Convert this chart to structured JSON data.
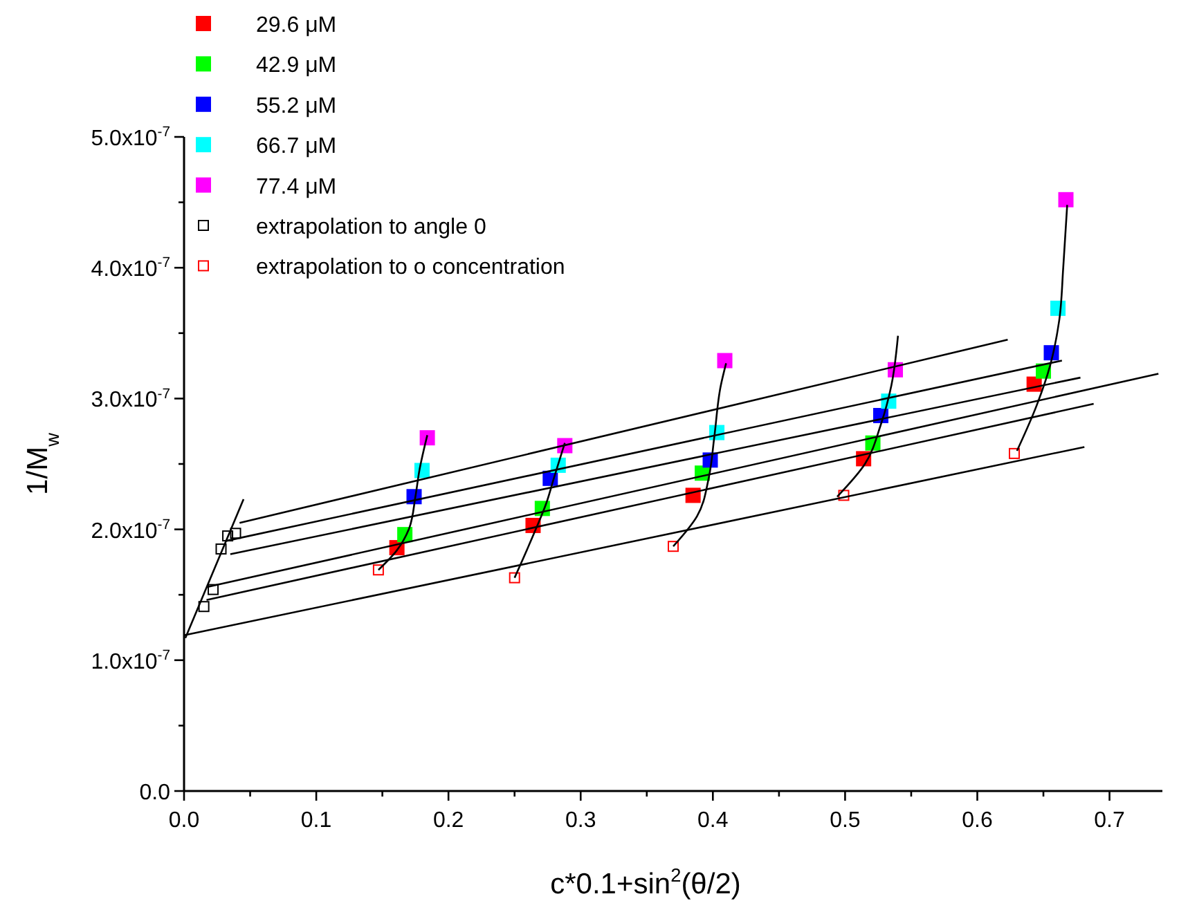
{
  "chart_data": {
    "type": "scatter",
    "xlabel": "c*0.1+sin$^{2}$(θ/2)",
    "ylabel": "1/M$_{w}$",
    "xlim": [
      0,
      0.74
    ],
    "ylim": [
      0,
      5e-07
    ],
    "xticks": [
      {
        "value": 0,
        "label": "0.0"
      },
      {
        "value": 0.05,
        "label": null
      },
      {
        "value": 0.1,
        "label": "0.1"
      },
      {
        "value": 0.15,
        "label": null
      },
      {
        "value": 0.2,
        "label": "0.2"
      },
      {
        "value": 0.25,
        "label": null
      },
      {
        "value": 0.3,
        "label": "0.3"
      },
      {
        "value": 0.35,
        "label": null
      },
      {
        "value": 0.4,
        "label": "0.4"
      },
      {
        "value": 0.45,
        "label": null
      },
      {
        "value": 0.5,
        "label": "0.5"
      },
      {
        "value": 0.55,
        "label": null
      },
      {
        "value": 0.6,
        "label": "0.6"
      },
      {
        "value": 0.65,
        "label": null
      },
      {
        "value": 0.7,
        "label": "0.7"
      }
    ],
    "yticks": [
      {
        "value": 0,
        "label": "0.0"
      },
      {
        "value": 5e-08,
        "label": null
      },
      {
        "value": 1e-07,
        "label": "1.0x10$^{-7}$"
      },
      {
        "value": 1.5e-07,
        "label": null
      },
      {
        "value": 2e-07,
        "label": "2.0x10$^{-7}$"
      },
      {
        "value": 2.5e-07,
        "label": null
      },
      {
        "value": 3e-07,
        "label": "3.0x10$^{-7}$"
      },
      {
        "value": 3.5e-07,
        "label": null
      },
      {
        "value": 4e-07,
        "label": "4.0x10$^{-7}$"
      },
      {
        "value": 4.5e-07,
        "label": null
      },
      {
        "value": 5e-07,
        "label": "5.0x10$^{-7}$"
      }
    ],
    "grid": false,
    "legend": "top left",
    "series": [
      {
        "name": "29.6 μM",
        "color": "#ff0000",
        "marker": "square",
        "x": [
          0.161,
          0.264,
          0.385,
          0.514,
          0.643
        ],
        "values": [
          1.86e-07,
          2.03e-07,
          2.26e-07,
          2.54e-07,
          3.11e-07
        ]
      },
      {
        "name": "42.9 μM",
        "color": "#00ff00",
        "marker": "square",
        "x": [
          0.167,
          0.271,
          0.392,
          0.521,
          0.65
        ],
        "values": [
          1.96e-07,
          2.16e-07,
          2.43e-07,
          2.66e-07,
          3.21e-07
        ]
      },
      {
        "name": "55.2 μM",
        "color": "#0000ff",
        "marker": "square",
        "x": [
          0.174,
          0.277,
          0.398,
          0.527,
          0.656
        ],
        "values": [
          2.25e-07,
          2.39e-07,
          2.53e-07,
          2.87e-07,
          3.35e-07
        ]
      },
      {
        "name": "66.7 μM",
        "color": "#00ffff",
        "marker": "square",
        "x": [
          0.18,
          0.283,
          0.403,
          0.533,
          0.661
        ],
        "values": [
          2.45e-07,
          2.49e-07,
          2.74e-07,
          2.98e-07,
          3.69e-07
        ]
      },
      {
        "name": "77.4 μM",
        "color": "#ff00ff",
        "marker": "square",
        "x": [
          0.184,
          0.288,
          0.409,
          0.538,
          0.667
        ],
        "values": [
          2.7e-07,
          2.64e-07,
          3.29e-07,
          3.22e-07,
          4.52e-07
        ]
      },
      {
        "name": "extrapolation to angle 0",
        "color": "#000000",
        "marker": "square",
        "x": [
          0.015,
          0.022,
          0.028,
          0.033,
          0.039
        ],
        "values": [
          1.41e-07,
          1.54e-07,
          1.85e-07,
          1.95e-07,
          1.97e-07
        ]
      },
      {
        "name": "extrapolation to o concentration",
        "color": "#ff0000",
        "marker": "square",
        "x": [
          0.147,
          0.25,
          0.37,
          0.499,
          0.628
        ],
        "values": [
          1.69e-07,
          1.63e-07,
          1.87e-07,
          2.26e-07,
          2.58e-07
        ]
      },
      {
        "type": "line",
        "color": "#000000",
        "x": [
          0,
          0.681
        ],
        "values": [
          1.19e-07,
          2.63e-07
        ]
      },
      {
        "type": "line",
        "color": "#000000",
        "x": [
          0.017,
          0.688
        ],
        "values": [
          1.46e-07,
          2.96e-07
        ]
      },
      {
        "type": "line",
        "color": "#000000",
        "x": [
          0.018,
          0.737
        ],
        "values": [
          1.56e-07,
          3.19e-07
        ]
      },
      {
        "type": "line",
        "color": "#000000",
        "x": [
          0.035,
          0.678
        ],
        "values": [
          1.81e-07,
          3.16e-07
        ]
      },
      {
        "type": "line",
        "color": "#000000",
        "x": [
          0.031,
          0.664
        ],
        "values": [
          1.91e-07,
          3.29e-07
        ]
      },
      {
        "type": "line",
        "color": "#000000",
        "x": [
          0.042,
          0.623
        ],
        "values": [
          2.05e-07,
          3.45e-07
        ]
      },
      {
        "type": "line",
        "color": "#000000",
        "x": [
          0.001,
          0.045
        ],
        "values": [
          1.17e-07,
          2.23e-07
        ]
      },
      {
        "type": "line",
        "color": "#000000",
        "x": [
          0.147,
          0.161,
          0.17,
          0.175,
          0.178,
          0.184
        ],
        "values": [
          1.69e-07,
          1.84e-07,
          2e-07,
          2.25e-07,
          2.45e-07,
          2.72e-07
        ]
      },
      {
        "type": "line",
        "color": "#000000",
        "x": [
          0.25,
          0.266,
          0.274,
          0.28,
          0.288
        ],
        "values": [
          1.63e-07,
          2e-07,
          2.2e-07,
          2.4e-07,
          2.66e-07
        ]
      },
      {
        "type": "line",
        "color": "#000000",
        "x": [
          0.37,
          0.388,
          0.397,
          0.401,
          0.406,
          0.41
        ],
        "values": [
          1.87e-07,
          2.1e-07,
          2.4e-07,
          2.7e-07,
          3.1e-07,
          3.27e-07
        ]
      },
      {
        "type": "line",
        "color": "#000000",
        "x": [
          0.494,
          0.515,
          0.527,
          0.535,
          0.54
        ],
        "values": [
          2.25e-07,
          2.5e-07,
          2.8e-07,
          3.1e-07,
          3.48e-07
        ]
      },
      {
        "type": "line",
        "color": "#000000",
        "x": [
          0.63,
          0.645,
          0.655,
          0.662,
          0.665,
          0.668
        ],
        "values": [
          2.6e-07,
          2.95e-07,
          3.25e-07,
          3.6e-07,
          4e-07,
          4.48e-07
        ]
      }
    ]
  }
}
